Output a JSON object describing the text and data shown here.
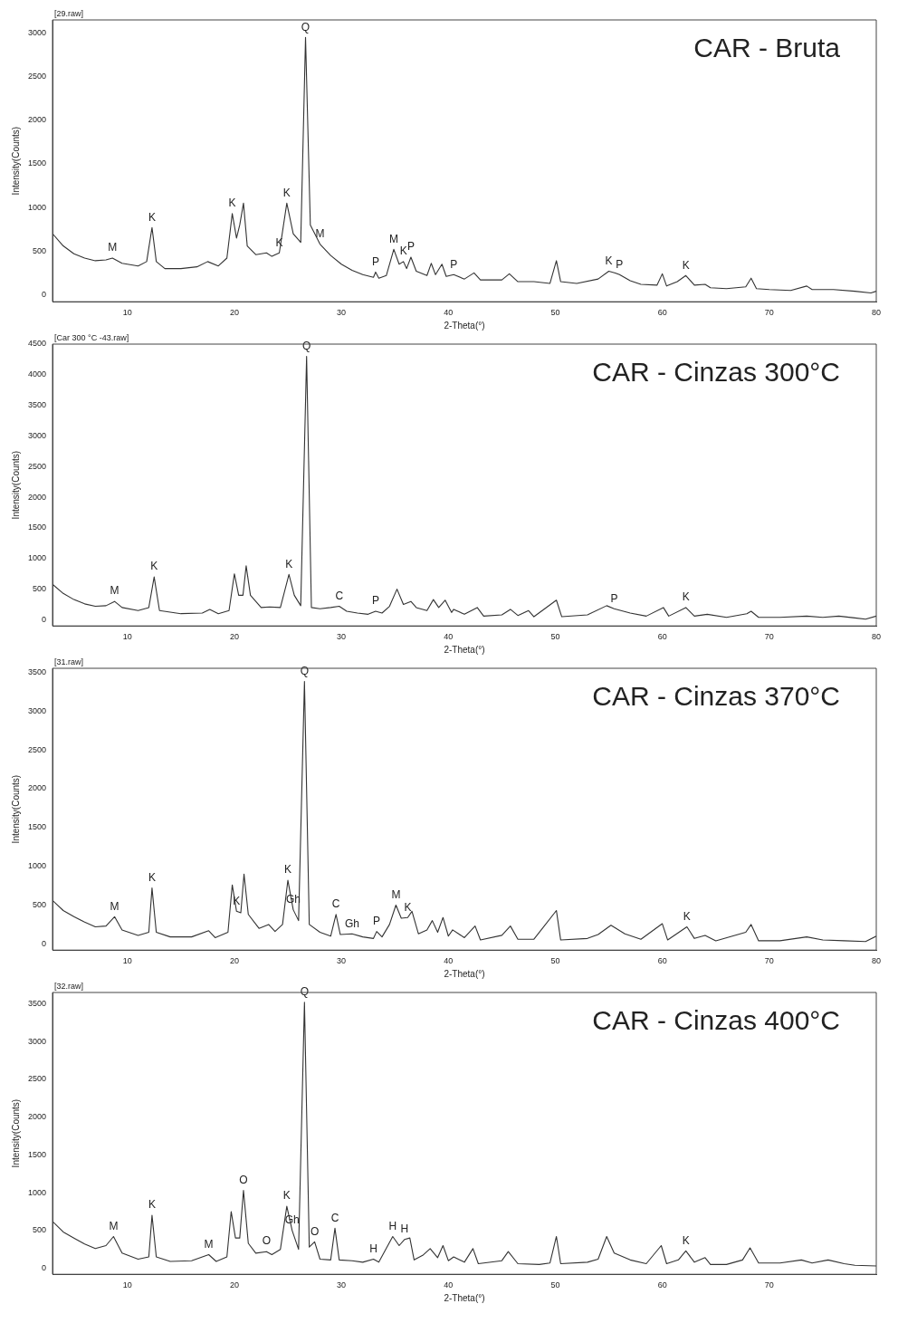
{
  "chart_data": [
    {
      "type": "line",
      "title": "CAR - Bruta",
      "subtitle": "[29.raw]",
      "xlabel": "2-Theta(°)",
      "ylabel": "Intensity(Counts)",
      "color": "#333333",
      "xlim": [
        3,
        80
      ],
      "ylim": [
        -80,
        3150
      ],
      "xticks": [
        10,
        20,
        30,
        40,
        50,
        60,
        70,
        80
      ],
      "yticks": [
        0,
        500,
        1000,
        1500,
        2000,
        2500,
        3000
      ],
      "x": [
        3,
        4,
        5,
        6,
        7,
        8,
        8.6,
        9.5,
        11,
        11.8,
        12.3,
        12.7,
        13.5,
        15,
        16.5,
        17.5,
        18.5,
        19.3,
        19.8,
        20.2,
        20.5,
        20.85,
        21.2,
        22,
        23,
        23.5,
        24.2,
        24.9,
        25.5,
        26.2,
        26.65,
        27.1,
        28,
        29,
        30,
        31,
        32,
        33,
        33.2,
        33.5,
        34.2,
        34.9,
        35.4,
        35.8,
        36.1,
        36.5,
        37,
        38,
        38.4,
        38.8,
        39.4,
        39.8,
        40.5,
        41.5,
        42.4,
        43,
        45,
        45.7,
        46.5,
        48,
        49.5,
        50.1,
        50.5,
        52,
        54,
        55,
        55.6,
        56,
        57,
        58,
        59.5,
        60,
        60.4,
        61.4,
        62.2,
        63,
        64,
        64.5,
        66,
        67.8,
        68.3,
        68.8,
        70,
        72,
        73.5,
        74,
        76,
        78,
        79.5,
        80
      ],
      "values": [
        700,
        560,
        470,
        420,
        390,
        400,
        420,
        360,
        330,
        380,
        770,
        380,
        300,
        300,
        320,
        380,
        330,
        420,
        930,
        650,
        800,
        1050,
        560,
        460,
        480,
        440,
        480,
        1050,
        700,
        600,
        2950,
        800,
        580,
        450,
        350,
        280,
        230,
        200,
        260,
        190,
        220,
        520,
        350,
        380,
        300,
        430,
        270,
        220,
        360,
        230,
        350,
        210,
        230,
        180,
        250,
        170,
        170,
        240,
        150,
        150,
        130,
        390,
        150,
        130,
        180,
        270,
        250,
        230,
        160,
        120,
        110,
        240,
        100,
        150,
        220,
        110,
        120,
        80,
        70,
        90,
        190,
        70,
        60,
        50,
        100,
        60,
        60,
        40,
        20,
        40
      ],
      "annotations": [
        {
          "text": "M",
          "x": 8.6,
          "y": 420
        },
        {
          "text": "K",
          "x": 12.3,
          "y": 770
        },
        {
          "text": "K",
          "x": 19.8,
          "y": 930
        },
        {
          "text": "K",
          "x": 24.2,
          "y": 480
        },
        {
          "text": "K",
          "x": 24.9,
          "y": 1050
        },
        {
          "text": "Q",
          "x": 26.65,
          "y": 2950
        },
        {
          "text": "M",
          "x": 28,
          "y": 580
        },
        {
          "text": "P",
          "x": 33.2,
          "y": 260
        },
        {
          "text": "M",
          "x": 34.9,
          "y": 520
        },
        {
          "text": "K",
          "x": 35.8,
          "y": 380
        },
        {
          "text": "P",
          "x": 36.5,
          "y": 430
        },
        {
          "text": "P",
          "x": 40.5,
          "y": 230
        },
        {
          "text": "K",
          "x": 55,
          "y": 270
        },
        {
          "text": "P",
          "x": 56,
          "y": 230
        },
        {
          "text": "K",
          "x": 62.2,
          "y": 220
        }
      ]
    },
    {
      "type": "line",
      "title": "CAR - Cinzas 300°C",
      "subtitle": "[Car 300 °C -43.raw]",
      "xlabel": "2-Theta(°)",
      "ylabel": "Intensity(Counts)",
      "color": "#333333",
      "xlim": [
        3,
        80
      ],
      "ylim": [
        -100,
        4500
      ],
      "xticks": [
        10,
        20,
        30,
        40,
        50,
        60,
        70,
        80
      ],
      "yticks": [
        0,
        500,
        1000,
        1500,
        2000,
        2500,
        3000,
        3500,
        4000,
        4500
      ],
      "x": [
        3,
        4,
        5,
        6,
        7,
        8,
        8.8,
        9.5,
        11,
        12,
        12.5,
        13,
        15,
        17,
        17.7,
        18.5,
        19.5,
        20,
        20.4,
        20.8,
        21.1,
        21.5,
        22.5,
        23.3,
        24.3,
        25.1,
        25.6,
        26.2,
        26.75,
        27.2,
        28,
        29,
        29.8,
        30.5,
        31.5,
        32.5,
        33.2,
        33.8,
        34.5,
        35.2,
        35.8,
        36.5,
        37,
        38,
        38.6,
        39.1,
        39.7,
        40.3,
        40.5,
        41.5,
        42.7,
        43.3,
        45,
        45.8,
        46.5,
        47.5,
        48,
        50.1,
        50.6,
        53,
        54.8,
        55.5,
        57,
        58.5,
        60.1,
        60.6,
        62.2,
        63,
        64.2,
        66,
        67.9,
        68.3,
        69,
        71,
        73.5,
        75,
        76.5,
        78,
        79,
        80
      ],
      "values": [
        580,
        430,
        330,
        260,
        220,
        230,
        300,
        200,
        150,
        200,
        700,
        150,
        100,
        110,
        170,
        100,
        150,
        750,
        400,
        400,
        880,
        400,
        200,
        210,
        200,
        740,
        400,
        230,
        4300,
        200,
        180,
        200,
        220,
        140,
        110,
        90,
        140,
        110,
        220,
        500,
        250,
        300,
        200,
        150,
        330,
        200,
        320,
        120,
        170,
        90,
        200,
        60,
        80,
        170,
        70,
        150,
        50,
        320,
        50,
        80,
        230,
        180,
        110,
        60,
        200,
        60,
        200,
        60,
        90,
        40,
        100,
        140,
        40,
        40,
        60,
        40,
        60,
        30,
        10,
        60
      ],
      "annotations": [
        {
          "text": "M",
          "x": 8.8,
          "y": 300
        },
        {
          "text": "K",
          "x": 12.5,
          "y": 700
        },
        {
          "text": "K",
          "x": 25.1,
          "y": 740
        },
        {
          "text": "Q",
          "x": 26.75,
          "y": 4300
        },
        {
          "text": "C",
          "x": 29.8,
          "y": 220
        },
        {
          "text": "P",
          "x": 33.2,
          "y": 140
        },
        {
          "text": "P",
          "x": 55.5,
          "y": 180
        },
        {
          "text": "K",
          "x": 62.2,
          "y": 200
        }
      ]
    },
    {
      "type": "line",
      "title": "CAR - Cinzas 370°C",
      "subtitle": "[31.raw]",
      "xlabel": "2-Theta(°)",
      "ylabel": "Intensity(Counts)",
      "color": "#333333",
      "xlim": [
        3,
        80
      ],
      "ylim": [
        -80,
        3550
      ],
      "xticks": [
        10,
        20,
        30,
        40,
        50,
        60,
        70,
        80
      ],
      "yticks": [
        0,
        500,
        1000,
        1500,
        2000,
        2500,
        3000,
        3500
      ],
      "x": [
        3,
        4,
        5,
        6,
        7,
        8,
        8.8,
        9.5,
        11,
        12,
        12.3,
        12.7,
        14,
        16,
        17.6,
        18.2,
        19.4,
        19.8,
        20.2,
        20.6,
        20.9,
        21.3,
        22.3,
        23.2,
        23.8,
        24.5,
        25,
        25.5,
        26,
        26.55,
        27,
        28,
        29,
        29.5,
        29.9,
        31,
        32,
        33,
        33.3,
        33.8,
        34.5,
        35.1,
        35.6,
        36.2,
        36.6,
        37.2,
        38,
        38.5,
        39,
        39.5,
        40,
        40.4,
        41.5,
        42.5,
        43,
        45,
        45.8,
        46.5,
        48,
        50.1,
        50.5,
        53,
        54,
        55.2,
        56.5,
        58,
        60,
        60.5,
        62.3,
        63,
        64,
        65,
        67.8,
        68.3,
        69,
        71,
        73.5,
        75,
        77,
        79,
        80
      ],
      "values": [
        560,
        430,
        350,
        280,
        220,
        230,
        350,
        180,
        110,
        150,
        720,
        150,
        90,
        90,
        170,
        80,
        150,
        760,
        420,
        400,
        900,
        380,
        200,
        250,
        160,
        250,
        820,
        440,
        300,
        3380,
        250,
        150,
        100,
        380,
        120,
        130,
        90,
        70,
        160,
        90,
        250,
        500,
        330,
        340,
        420,
        130,
        180,
        300,
        150,
        340,
        100,
        180,
        80,
        230,
        50,
        110,
        230,
        60,
        60,
        430,
        50,
        70,
        120,
        240,
        130,
        60,
        260,
        50,
        220,
        70,
        110,
        40,
        150,
        250,
        40,
        40,
        90,
        50,
        40,
        30,
        100
      ],
      "annotations": [
        {
          "text": "M",
          "x": 8.8,
          "y": 350
        },
        {
          "text": "K",
          "x": 12.3,
          "y": 720
        },
        {
          "text": "K",
          "x": 20.2,
          "y": 420
        },
        {
          "text": "Gh",
          "x": 25.5,
          "y": 440
        },
        {
          "text": "K",
          "x": 25,
          "y": 820
        },
        {
          "text": "Q",
          "x": 26.55,
          "y": 3380
        },
        {
          "text": "C",
          "x": 29.5,
          "y": 380
        },
        {
          "text": "Gh",
          "x": 31,
          "y": 130
        },
        {
          "text": "P",
          "x": 33.3,
          "y": 160
        },
        {
          "text": "M",
          "x": 35.1,
          "y": 500
        },
        {
          "text": "K",
          "x": 36.2,
          "y": 340
        },
        {
          "text": "K",
          "x": 62.3,
          "y": 220
        }
      ]
    },
    {
      "type": "line",
      "title": "CAR - Cinzas 400°C",
      "subtitle": "[32.raw]",
      "xlabel": "2-Theta(°)",
      "ylabel": "Intensity(Counts)",
      "color": "#333333",
      "xlim": [
        3,
        80
      ],
      "ylim": [
        -80,
        3650
      ],
      "xticks": [
        10,
        20,
        30,
        40,
        50,
        60,
        70
      ],
      "yticks": [
        0,
        500,
        1000,
        1500,
        2000,
        2500,
        3000,
        3500
      ],
      "x": [
        3,
        4,
        5,
        6,
        7,
        8,
        8.7,
        9.5,
        11,
        12,
        12.3,
        12.7,
        14,
        16,
        17.6,
        18.3,
        19.3,
        19.7,
        20.1,
        20.5,
        20.85,
        21.3,
        22,
        23,
        23.5,
        24.3,
        24.9,
        25.4,
        26,
        26.55,
        27,
        27.5,
        28,
        29,
        29.4,
        29.8,
        31,
        32,
        33,
        33.5,
        34.8,
        35.4,
        35.9,
        36.4,
        36.8,
        37.6,
        38.3,
        39,
        39.5,
        40,
        40.5,
        41.5,
        42.3,
        42.8,
        45,
        45.6,
        46.5,
        48.5,
        49.5,
        50.1,
        50.5,
        53,
        54,
        54.8,
        55.5,
        57,
        58.5,
        59.9,
        60.4,
        61.5,
        62.2,
        63,
        64,
        64.5,
        66,
        67.5,
        68.2,
        69,
        71,
        73,
        74,
        75.5,
        77,
        78,
        80
      ],
      "values": [
        620,
        480,
        400,
        320,
        260,
        300,
        420,
        200,
        120,
        150,
        700,
        150,
        90,
        100,
        180,
        90,
        150,
        750,
        400,
        400,
        1030,
        330,
        200,
        220,
        180,
        250,
        820,
        500,
        250,
        3520,
        280,
        350,
        120,
        110,
        530,
        110,
        100,
        80,
        120,
        80,
        420,
        300,
        380,
        400,
        110,
        170,
        260,
        140,
        300,
        100,
        150,
        80,
        260,
        60,
        100,
        220,
        60,
        50,
        70,
        420,
        60,
        80,
        120,
        420,
        200,
        110,
        60,
        300,
        60,
        110,
        230,
        80,
        140,
        50,
        50,
        110,
        270,
        70,
        70,
        110,
        70,
        110,
        60,
        40,
        30
      ],
      "annotations": [
        {
          "text": "M",
          "x": 8.7,
          "y": 420
        },
        {
          "text": "K",
          "x": 12.3,
          "y": 700
        },
        {
          "text": "M",
          "x": 17.6,
          "y": 180
        },
        {
          "text": "O",
          "x": 20.85,
          "y": 1030
        },
        {
          "text": "Gh",
          "x": 25.4,
          "y": 500
        },
        {
          "text": "O",
          "x": 23,
          "y": 220
        },
        {
          "text": "K",
          "x": 24.9,
          "y": 820
        },
        {
          "text": "Q",
          "x": 26.55,
          "y": 3520
        },
        {
          "text": "O",
          "x": 27.5,
          "y": 350
        },
        {
          "text": "C",
          "x": 29.4,
          "y": 530
        },
        {
          "text": "H",
          "x": 33,
          "y": 120
        },
        {
          "text": "H",
          "x": 34.8,
          "y": 420
        },
        {
          "text": "H",
          "x": 35.9,
          "y": 380
        },
        {
          "text": "K",
          "x": 62.2,
          "y": 230
        }
      ]
    }
  ]
}
